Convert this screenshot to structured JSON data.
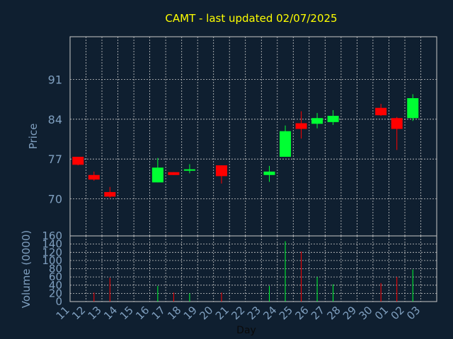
{
  "chart_data": [
    {
      "type": "candlestick",
      "title": "CAMT - last updated 02/07/2025",
      "ylabel": "Price",
      "ylim": [
        63.5,
        98.5
      ],
      "yticks": [
        70,
        77,
        84,
        91
      ],
      "grid": true,
      "colors": {
        "up": "#00ff33",
        "down": "#ff0000",
        "title": "#ffff00",
        "axis_text": "#7f9fbf",
        "grid": "#c8c8c8",
        "background": "#0f1f30"
      },
      "candles": [
        {
          "day": "11",
          "open": 77.4,
          "high": 77.4,
          "low": 75.9,
          "close": 76.0
        },
        {
          "day": "12",
          "open": 74.2,
          "high": 74.8,
          "low": 73.2,
          "close": 73.4
        },
        {
          "day": "13",
          "open": 71.2,
          "high": 72.1,
          "low": 70.2,
          "close": 70.4
        },
        {
          "day": "16",
          "open": 72.9,
          "high": 77.2,
          "low": 72.9,
          "close": 75.5
        },
        {
          "day": "17",
          "open": 74.7,
          "high": 74.7,
          "low": 74.2,
          "close": 74.2
        },
        {
          "day": "18",
          "open": 75.0,
          "high": 76.1,
          "low": 74.5,
          "close": 75.2
        },
        {
          "day": "20",
          "open": 75.9,
          "high": 75.9,
          "low": 72.7,
          "close": 74.0
        },
        {
          "day": "23",
          "open": 74.2,
          "high": 75.8,
          "low": 73.0,
          "close": 74.8
        },
        {
          "day": "24",
          "open": 77.4,
          "high": 82.9,
          "low": 77.4,
          "close": 81.9
        },
        {
          "day": "25",
          "open": 83.3,
          "high": 85.4,
          "low": 80.6,
          "close": 82.3
        },
        {
          "day": "26",
          "open": 83.2,
          "high": 85.1,
          "low": 82.4,
          "close": 84.2
        },
        {
          "day": "27",
          "open": 83.5,
          "high": 85.6,
          "low": 83.0,
          "close": 84.6
        },
        {
          "day": "30",
          "open": 86.0,
          "high": 86.7,
          "low": 84.6,
          "close": 84.7
        },
        {
          "day": "01",
          "open": 84.2,
          "high": 84.4,
          "low": 78.6,
          "close": 82.3
        },
        {
          "day": "02",
          "open": 84.2,
          "high": 88.4,
          "low": 83.7,
          "close": 87.7
        }
      ]
    },
    {
      "type": "bar",
      "ylabel": "Volume (0000)",
      "xlabel": "Day",
      "ylim": [
        0,
        160
      ],
      "yticks": [
        0,
        20,
        40,
        60,
        80,
        100,
        120,
        140,
        160
      ],
      "categories": [
        "11",
        "12",
        "13",
        "14",
        "15",
        "16",
        "17",
        "18",
        "19",
        "20",
        "21",
        "22",
        "23",
        "24",
        "25",
        "26",
        "27",
        "28",
        "29",
        "30",
        "01",
        "02",
        "03"
      ],
      "bars": [
        {
          "day": "12",
          "value": 22,
          "direction": "down"
        },
        {
          "day": "13",
          "value": 58,
          "direction": "down"
        },
        {
          "day": "16",
          "value": 38,
          "direction": "up"
        },
        {
          "day": "17",
          "value": 22,
          "direction": "down"
        },
        {
          "day": "18",
          "value": 20,
          "direction": "up"
        },
        {
          "day": "20",
          "value": 22,
          "direction": "down"
        },
        {
          "day": "23",
          "value": 38,
          "direction": "up"
        },
        {
          "day": "24",
          "value": 147,
          "direction": "up"
        },
        {
          "day": "25",
          "value": 122,
          "direction": "down"
        },
        {
          "day": "26",
          "value": 60,
          "direction": "up"
        },
        {
          "day": "27",
          "value": 42,
          "direction": "up"
        },
        {
          "day": "30",
          "value": 45,
          "direction": "down"
        },
        {
          "day": "01",
          "value": 60,
          "direction": "down"
        },
        {
          "day": "02",
          "value": 78,
          "direction": "up"
        }
      ]
    }
  ]
}
